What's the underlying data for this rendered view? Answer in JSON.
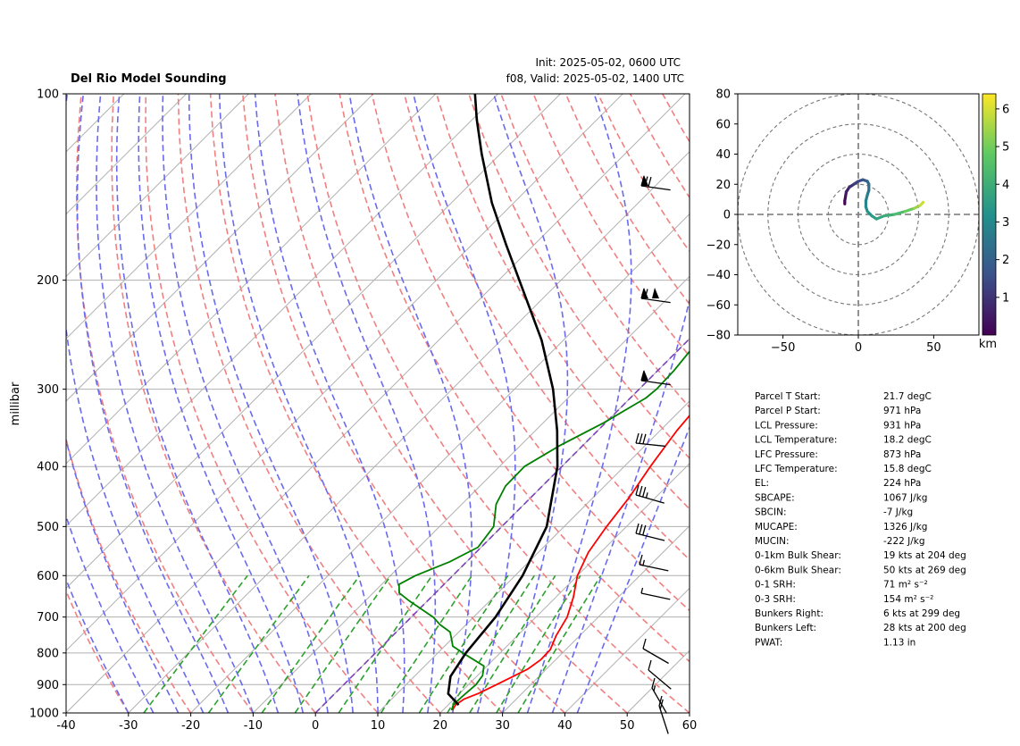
{
  "header": {
    "title": "Del Rio Model Sounding",
    "init": "Init: 2025-05-02, 0600 UTC",
    "valid": "f08, Valid: 2025-05-02, 1400 UTC"
  },
  "colors": {
    "temperature": "#ff0000",
    "dewpoint": "#008000",
    "parcel": "#000000",
    "dry_adiabat": "#f08080",
    "moist_adiabat": "#6a6aef",
    "mixing_ratio": "#2ca02c",
    "isotherm": "#aaaaaa",
    "zero_isotherm": "#7b3fb9"
  },
  "chart_data": [
    {
      "type": "line",
      "subtype": "skew-t",
      "title": "Del Rio Model Sounding",
      "ylabel": "millibar",
      "xlim": [
        -40,
        60
      ],
      "ylim": [
        1000,
        100
      ],
      "yscale": "log",
      "grid": true,
      "x_ticks": [
        "-40",
        "-30",
        "-20",
        "-10",
        "0",
        "10",
        "20",
        "30",
        "40",
        "50",
        "60"
      ],
      "y_ticks": [
        "100",
        "200",
        "300",
        "400",
        "500",
        "600",
        "700",
        "800",
        "900",
        "1000"
      ],
      "series": [
        {
          "role": "temperature",
          "points": [
            [
              990,
              21.5
            ],
            [
              970,
              21.2
            ],
            [
              950,
              21.6
            ],
            [
              930,
              23
            ],
            [
              900,
              24.5
            ],
            [
              870,
              26
            ],
            [
              850,
              27
            ],
            [
              820,
              27.6
            ],
            [
              790,
              27.5
            ],
            [
              750,
              26.2
            ],
            [
              700,
              25
            ],
            [
              650,
              22.8
            ],
            [
              600,
              20
            ],
            [
              550,
              18
            ],
            [
              500,
              16.8
            ],
            [
              450,
              15.8
            ],
            [
              400,
              14.2
            ],
            [
              350,
              12.7
            ],
            [
              300,
              11.7
            ],
            [
              250,
              11.3
            ],
            [
              200,
              12.6
            ],
            [
              180,
              13.7
            ],
            [
              150,
              19
            ],
            [
              130,
              24.5
            ],
            [
              116,
              32
            ],
            [
              108,
              37.5
            ]
          ]
        },
        {
          "role": "dewpoint",
          "points": [
            [
              990,
              21.4
            ],
            [
              970,
              20.8
            ],
            [
              940,
              20.9
            ],
            [
              900,
              21.2
            ],
            [
              870,
              20.8
            ],
            [
              840,
              19.5
            ],
            [
              800,
              14
            ],
            [
              780,
              11.3
            ],
            [
              760,
              10
            ],
            [
              740,
              8.6
            ],
            [
              720,
              5.8
            ],
            [
              700,
              3.5
            ],
            [
              660,
              -2.8
            ],
            [
              640,
              -5.8
            ],
            [
              620,
              -7.2
            ],
            [
              600,
              -6
            ],
            [
              570,
              -2.7
            ],
            [
              540,
              -0.5
            ],
            [
              500,
              -1.3
            ],
            [
              460,
              -4.5
            ],
            [
              430,
              -5.9
            ],
            [
              400,
              -6
            ],
            [
              370,
              -3.7
            ],
            [
              340,
              -0.3
            ],
            [
              310,
              2.5
            ],
            [
              300,
              2.8
            ],
            [
              280,
              2.6
            ],
            [
              250,
              1.7
            ],
            [
              230,
              1.4
            ],
            [
              200,
              2.2
            ],
            [
              175,
              2.8
            ],
            [
              150,
              0.8
            ],
            [
              130,
              -2.2
            ],
            [
              115,
              -4.7
            ],
            [
              108,
              -4.5
            ],
            [
              104,
              -1.8
            ]
          ]
        },
        {
          "role": "parcel",
          "points": [
            [
              971,
              21.7
            ],
            [
              931,
              18.2
            ],
            [
              873,
              15.8
            ],
            [
              800,
              14.5
            ],
            [
              700,
              13.5
            ],
            [
              600,
              11.2
            ],
            [
              500,
              7.2
            ],
            [
              400,
              -0.7
            ],
            [
              350,
              -6.5
            ],
            [
              300,
              -13.8
            ],
            [
              250,
              -23.5
            ],
            [
              224,
              -30
            ],
            [
              200,
              -36.7
            ],
            [
              175,
              -44.6
            ],
            [
              150,
              -53.5
            ],
            [
              125,
              -63
            ],
            [
              110,
              -69.3
            ],
            [
              100,
              -73.7
            ]
          ]
        }
      ]
    },
    {
      "type": "line",
      "subtype": "hodograph",
      "xlim": [
        -80,
        80
      ],
      "ylim": [
        -80,
        80
      ],
      "x_ticks": [
        "−50",
        "0",
        "50"
      ],
      "y_ticks": [
        "80",
        "60",
        "40",
        "20",
        "0",
        "−20",
        "−40",
        "−60",
        "−80"
      ],
      "rings": [
        20,
        40,
        60,
        80
      ],
      "colorbar": {
        "label": "km",
        "ticks": [
          "1",
          "2",
          "3",
          "4",
          "5",
          "6"
        ],
        "range": [
          0,
          6.4
        ]
      },
      "points": [
        [
          -9,
          7,
          0.0
        ],
        [
          -9,
          9,
          0.2
        ],
        [
          -8.5,
          12,
          0.4
        ],
        [
          -8,
          15,
          0.6
        ],
        [
          -6,
          18,
          0.9
        ],
        [
          -3,
          20,
          1.2
        ],
        [
          0,
          22,
          1.5
        ],
        [
          3,
          23,
          1.8
        ],
        [
          6,
          22,
          2.1
        ],
        [
          7,
          20,
          2.3
        ],
        [
          7,
          16,
          2.5
        ],
        [
          6,
          13,
          2.7
        ],
        [
          5,
          9,
          2.9
        ],
        [
          5,
          5,
          3.1
        ],
        [
          6,
          2,
          3.3
        ],
        [
          9,
          -1,
          3.5
        ],
        [
          12,
          -3,
          3.7
        ],
        [
          17,
          -1,
          4.0
        ],
        [
          24,
          0,
          4.4
        ],
        [
          31,
          2,
          4.9
        ],
        [
          37,
          4,
          5.4
        ],
        [
          41,
          6,
          5.9
        ],
        [
          43,
          8,
          6.3
        ]
      ]
    }
  ],
  "stats": [
    {
      "label": "Parcel T Start:",
      "value": "21.7 degC"
    },
    {
      "label": "Parcel P Start:",
      "value": "971 hPa"
    },
    {
      "label": "LCL Pressure:",
      "value": "931 hPa"
    },
    {
      "label": "LCL Temperature:",
      "value": "18.2 degC"
    },
    {
      "label": "LFC Pressure:",
      "value": "873 hPa"
    },
    {
      "label": "LFC Temperature:",
      "value": "15.8 degC"
    },
    {
      "label": "EL:",
      "value": "224 hPa"
    },
    {
      "label": "SBCAPE:",
      "value": "1067 J/kg"
    },
    {
      "label": "SBCIN:",
      "value": "-7 J/kg"
    },
    {
      "label": "MUCAPE:",
      "value": "1326 J/kg"
    },
    {
      "label": "MUCIN:",
      "value": "-222 J/kg"
    },
    {
      "label": "0-1km Bulk Shear:",
      "value": "19 kts at 204 deg"
    },
    {
      "label": "0-6km Bulk Shear:",
      "value": "50 kts at 269 deg"
    },
    {
      "label": "0-1 SRH:",
      "value": "71 m² s⁻²"
    },
    {
      "label": "0-3 SRH:",
      "value": "154 m² s⁻²"
    },
    {
      "label": "Bunkers Right:",
      "value": "6 kts at 299 deg"
    },
    {
      "label": "Bunkers Left:",
      "value": "28 kts at 200 deg"
    },
    {
      "label": "PWAT:",
      "value": "1.13 in"
    }
  ]
}
